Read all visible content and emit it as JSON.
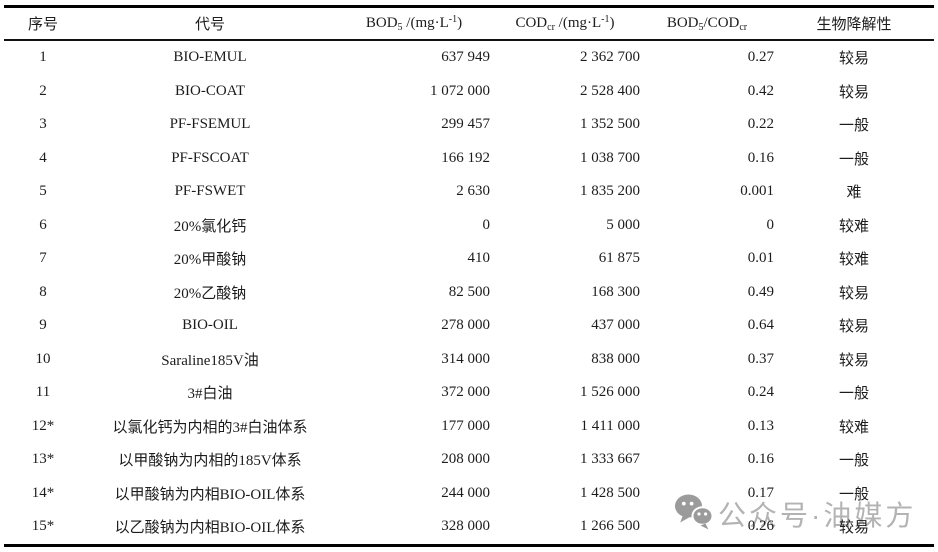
{
  "page": {
    "background": "#ffffff",
    "text_color": "#1c1c1c",
    "rule_color": "#000000"
  },
  "table": {
    "columns": [
      {
        "id": "num",
        "header": [
          {
            "text": "序号"
          }
        ]
      },
      {
        "id": "code",
        "header": [
          {
            "text": "代号"
          }
        ]
      },
      {
        "id": "bod",
        "header": [
          {
            "text": "BOD"
          },
          {
            "text": "5",
            "sub": true
          },
          {
            "text": " /(mg·L"
          },
          {
            "text": "-1",
            "sup": true
          },
          {
            "text": ")"
          }
        ]
      },
      {
        "id": "cod",
        "header": [
          {
            "text": "COD"
          },
          {
            "text": "cr",
            "sub": true
          },
          {
            "text": " /(mg·L"
          },
          {
            "text": "-1",
            "sup": true
          },
          {
            "text": ")"
          }
        ]
      },
      {
        "id": "ratio",
        "header": [
          {
            "text": "BOD"
          },
          {
            "text": "5",
            "sub": true
          },
          {
            "text": "/COD"
          },
          {
            "text": "cr",
            "sub": true
          }
        ]
      },
      {
        "id": "bio",
        "header": [
          {
            "text": "生物降解性"
          }
        ]
      }
    ],
    "rows": [
      {
        "num": "1",
        "code": "BIO-EMUL",
        "bod": "637 949",
        "cod": "2 362 700",
        "ratio": "0.27",
        "bio": "较易"
      },
      {
        "num": "2",
        "code": "BIO-COAT",
        "bod": "1 072 000",
        "cod": "2 528 400",
        "ratio": "0.42",
        "bio": "较易"
      },
      {
        "num": "3",
        "code": "PF-FSEMUL",
        "bod": "299 457",
        "cod": "1 352 500",
        "ratio": "0.22",
        "bio": "一般"
      },
      {
        "num": "4",
        "code": "PF-FSCOAT",
        "bod": "166 192",
        "cod": "1 038 700",
        "ratio": "0.16",
        "bio": "一般"
      },
      {
        "num": "5",
        "code": "PF-FSWET",
        "bod": "2 630",
        "cod": "1 835 200",
        "ratio": "0.001",
        "bio": "难"
      },
      {
        "num": "6",
        "code": "20%氯化钙",
        "bod": "0",
        "cod": "5 000",
        "ratio": "0",
        "bio": "较难"
      },
      {
        "num": "7",
        "code": "20%甲酸钠",
        "bod": "410",
        "cod": "61 875",
        "ratio": "0.01",
        "bio": "较难"
      },
      {
        "num": "8",
        "code": "20%乙酸钠",
        "bod": "82 500",
        "cod": "168 300",
        "ratio": "0.49",
        "bio": "较易"
      },
      {
        "num": "9",
        "code": "BIO-OIL",
        "bod": "278 000",
        "cod": "437 000",
        "ratio": "0.64",
        "bio": "较易"
      },
      {
        "num": "10",
        "code": "Saraline185V油",
        "bod": "314 000",
        "cod": "838 000",
        "ratio": "0.37",
        "bio": "较易"
      },
      {
        "num": "11",
        "code": "3#白油",
        "bod": "372 000",
        "cod": "1 526 000",
        "ratio": "0.24",
        "bio": "一般"
      },
      {
        "num": "12*",
        "code": "以氯化钙为内相的3#白油体系",
        "bod": "177 000",
        "cod": "1 411 000",
        "ratio": "0.13",
        "bio": "较难"
      },
      {
        "num": "13*",
        "code": "以甲酸钠为内相的185V体系",
        "bod": "208 000",
        "cod": "1 333 667",
        "ratio": "0.16",
        "bio": "一般"
      },
      {
        "num": "14*",
        "code": "以甲酸钠为内相BIO-OIL体系",
        "bod": "244 000",
        "cod": "1 428 500",
        "ratio": "0.17",
        "bio": "一般"
      },
      {
        "num": "15*",
        "code": "以乙酸钠为内相BIO-OIL体系",
        "bod": "328 000",
        "cod": "1 266 500",
        "ratio": "0.26",
        "bio": "较易"
      }
    ]
  },
  "watermark": {
    "icon": "wechat-icon",
    "text": "公众号·油媒方",
    "text_color": "#b3b3b3",
    "icon_color": "#9b9b9b"
  }
}
